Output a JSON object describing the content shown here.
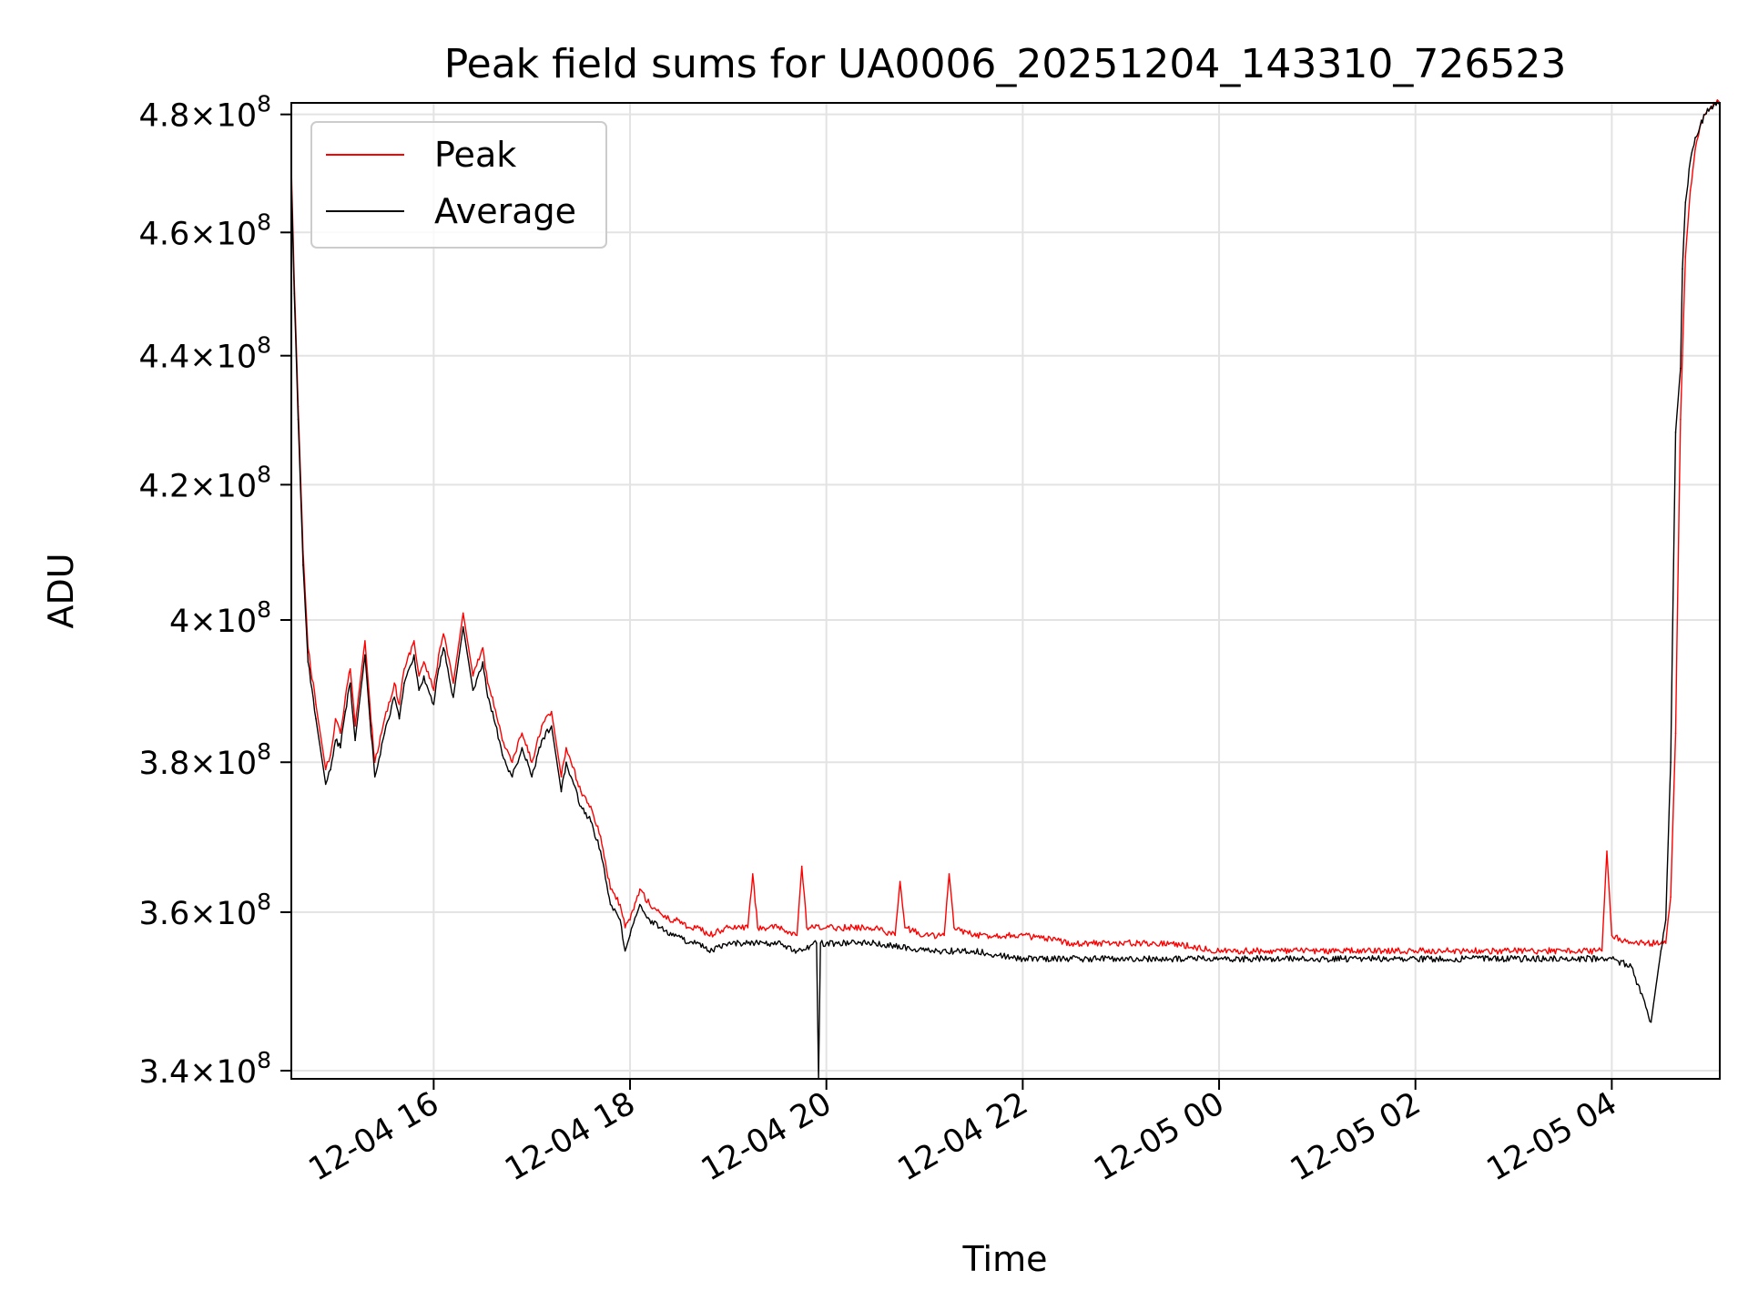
{
  "chart_data": {
    "type": "line",
    "title": "Peak field sums for UA0006_20251204_143310_726523",
    "xlabel": "Time",
    "ylabel": "ADU",
    "y_scale": "log",
    "grid": true,
    "legend_position": "top-left",
    "xlim_hours": [
      14.55,
      29.1
    ],
    "ylim": [
      339000000,
      482000000
    ],
    "x_ticks": [
      {
        "hour": 16,
        "label": "12-04 16"
      },
      {
        "hour": 18,
        "label": "12-04 18"
      },
      {
        "hour": 20,
        "label": "12-04 20"
      },
      {
        "hour": 22,
        "label": "12-04 22"
      },
      {
        "hour": 24,
        "label": "12-05 00"
      },
      {
        "hour": 26,
        "label": "12-05 02"
      },
      {
        "hour": 28,
        "label": "12-05 04"
      }
    ],
    "y_ticks": [
      {
        "value": 340000000,
        "mantissa": "3.4"
      },
      {
        "value": 360000000,
        "mantissa": "3.6"
      },
      {
        "value": 380000000,
        "mantissa": "3.8"
      },
      {
        "value": 400000000,
        "mantissa": "4"
      },
      {
        "value": 420000000,
        "mantissa": "4.2"
      },
      {
        "value": 440000000,
        "mantissa": "4.4"
      },
      {
        "value": 460000000,
        "mantissa": "4.6"
      },
      {
        "value": 480000000,
        "mantissa": "4.8"
      }
    ],
    "tick_base": "10",
    "tick_exponent": "8",
    "series": [
      {
        "name": "Peak",
        "color": "#ff0000",
        "x_hours": [
          14.55,
          14.58,
          14.62,
          14.67,
          14.72,
          14.8,
          14.9,
          14.95,
          15.0,
          15.05,
          15.1,
          15.15,
          15.2,
          15.3,
          15.35,
          15.4,
          15.5,
          15.6,
          15.65,
          15.7,
          15.8,
          15.85,
          15.9,
          16.0,
          16.05,
          16.1,
          16.2,
          16.3,
          16.4,
          16.5,
          16.55,
          16.6,
          16.7,
          16.8,
          16.9,
          17.0,
          17.1,
          17.2,
          17.3,
          17.35,
          17.4,
          17.5,
          17.6,
          17.7,
          17.8,
          17.9,
          17.95,
          18.0,
          18.1,
          18.2,
          18.3,
          18.4,
          18.5,
          18.6,
          18.7,
          18.8,
          19.0,
          19.2,
          19.25,
          19.3,
          19.5,
          19.7,
          19.75,
          19.8,
          20.0,
          20.5,
          20.7,
          20.75,
          20.8,
          21.0,
          21.2,
          21.25,
          21.3,
          21.5,
          22.0,
          22.5,
          23.0,
          23.5,
          24.0,
          24.5,
          25.0,
          25.5,
          26.0,
          26.5,
          27.0,
          27.5,
          27.9,
          27.95,
          28.0,
          28.2,
          28.5,
          28.55,
          28.6,
          28.65,
          28.7,
          28.72,
          28.75,
          28.8,
          28.85,
          28.9,
          28.95,
          29.0,
          29.05,
          29.1
        ],
        "values": [
          471000000,
          452000000,
          432000000,
          410000000,
          396000000,
          388000000,
          379000000,
          381000000,
          386000000,
          384000000,
          389000000,
          393000000,
          385000000,
          397000000,
          388000000,
          380000000,
          386000000,
          391000000,
          388000000,
          393000000,
          397000000,
          392000000,
          394000000,
          390000000,
          395000000,
          398000000,
          391000000,
          401000000,
          392000000,
          396000000,
          391000000,
          389000000,
          383000000,
          380000000,
          384000000,
          380000000,
          385000000,
          387000000,
          378000000,
          382000000,
          380000000,
          376000000,
          374000000,
          370000000,
          363000000,
          361000000,
          358000000,
          359000000,
          363000000,
          361000000,
          360000000,
          359000000,
          359000000,
          358000000,
          358000000,
          357000000,
          358000000,
          358000000,
          365000000,
          358000000,
          358000000,
          357000000,
          366000000,
          358000000,
          358000000,
          358000000,
          357000000,
          364000000,
          358000000,
          357000000,
          357000000,
          365000000,
          358000000,
          357000000,
          357000000,
          356000000,
          356000000,
          356000000,
          355000000,
          355000000,
          355000000,
          355000000,
          355000000,
          355000000,
          355000000,
          355000000,
          355000000,
          368000000,
          357000000,
          356000000,
          356000000,
          356000000,
          362000000,
          384000000,
          430000000,
          440000000,
          456000000,
          467000000,
          474000000,
          478000000,
          480000000,
          481000000,
          482000000,
          482000000
        ]
      },
      {
        "name": "Average",
        "color": "#000000",
        "x_hours": [
          14.55,
          14.58,
          14.62,
          14.67,
          14.72,
          14.8,
          14.9,
          14.95,
          15.0,
          15.05,
          15.1,
          15.15,
          15.2,
          15.3,
          15.35,
          15.4,
          15.5,
          15.6,
          15.65,
          15.7,
          15.8,
          15.85,
          15.9,
          16.0,
          16.05,
          16.1,
          16.2,
          16.3,
          16.4,
          16.5,
          16.55,
          16.6,
          16.7,
          16.8,
          16.9,
          17.0,
          17.1,
          17.2,
          17.3,
          17.35,
          17.4,
          17.5,
          17.6,
          17.7,
          17.8,
          17.9,
          17.95,
          18.0,
          18.1,
          18.2,
          18.3,
          18.4,
          18.5,
          18.6,
          18.7,
          18.8,
          19.0,
          19.2,
          19.5,
          19.7,
          19.9,
          19.92,
          19.94,
          20.0,
          20.5,
          21.0,
          21.5,
          22.0,
          22.5,
          23.0,
          23.5,
          24.0,
          24.5,
          25.0,
          25.5,
          26.0,
          26.5,
          27.0,
          27.5,
          28.0,
          28.2,
          28.4,
          28.5,
          28.55,
          28.6,
          28.65,
          28.7,
          28.72,
          28.75,
          28.8,
          28.85,
          28.9,
          28.95,
          29.0,
          29.05,
          29.1
        ],
        "values": [
          469000000,
          450000000,
          430000000,
          408000000,
          394000000,
          386000000,
          377000000,
          379000000,
          383000000,
          382000000,
          387000000,
          391000000,
          383000000,
          395000000,
          386000000,
          378000000,
          384000000,
          389000000,
          386000000,
          391000000,
          395000000,
          390000000,
          392000000,
          388000000,
          393000000,
          396000000,
          389000000,
          399000000,
          390000000,
          394000000,
          389000000,
          387000000,
          381000000,
          378000000,
          382000000,
          378000000,
          383000000,
          385000000,
          376000000,
          380000000,
          378000000,
          374000000,
          372000000,
          368000000,
          361000000,
          359000000,
          355000000,
          357000000,
          361000000,
          359000000,
          358000000,
          357000000,
          357000000,
          356000000,
          356000000,
          355000000,
          356000000,
          356000000,
          356000000,
          355000000,
          356000000,
          339000000,
          356000000,
          356000000,
          356000000,
          355000000,
          355000000,
          354000000,
          354000000,
          354000000,
          354000000,
          354000000,
          354000000,
          354000000,
          354000000,
          354000000,
          354000000,
          354000000,
          354000000,
          354000000,
          353000000,
          346000000,
          355000000,
          359000000,
          380000000,
          428000000,
          438000000,
          454000000,
          465000000,
          472000000,
          476000000,
          478000000,
          480000000,
          481000000,
          482000000,
          482000000
        ]
      }
    ]
  }
}
